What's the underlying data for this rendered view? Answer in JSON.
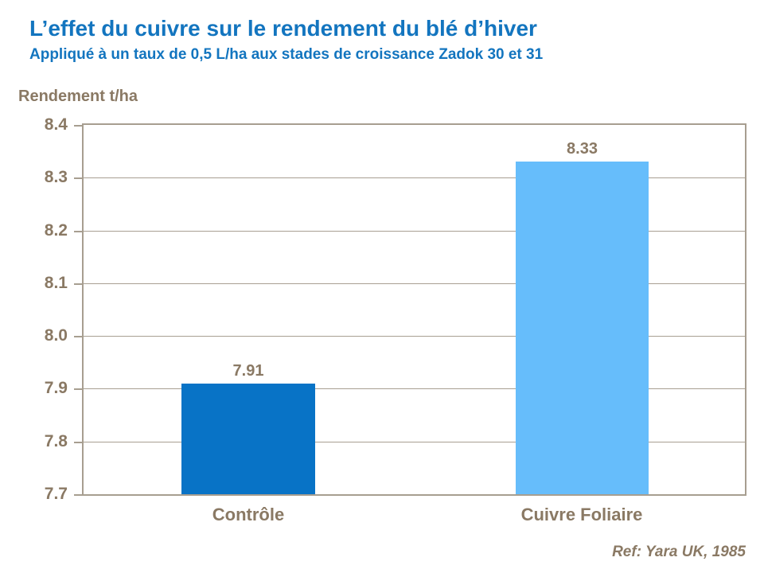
{
  "header": {
    "title": "L’effet du cuivre sur le rendement du blé d’hiver",
    "subtitle": "Appliqué à un taux de 0,5 L/ha aux stades de croissance Zadok 30 et 31",
    "title_color": "#1375BF"
  },
  "footer": {
    "ref": "Ref: Yara UK, 1985"
  },
  "chart_data": {
    "type": "bar",
    "title": "L’effet du cuivre sur le rendement du blé d’hiver",
    "subtitle": "Appliqué à un taux de 0,5 L/ha aux stades de croissance Zadok 30 et 31",
    "ylabel": "Rendement t/ha",
    "xlabel": "",
    "categories": [
      "Contrôle",
      "Cuivre Foliaire"
    ],
    "values": [
      7.91,
      8.33
    ],
    "value_labels": [
      "7.91",
      "8.33"
    ],
    "bar_colors": [
      "#0873C6",
      "#66BDFB"
    ],
    "ylim": [
      7.7,
      8.4
    ],
    "ytick_step": 0.1,
    "yticks": [
      "8.4",
      "8.3",
      "8.2",
      "8.1",
      "8.0",
      "7.9",
      "7.8",
      "7.7"
    ],
    "grid": true,
    "legend": "none",
    "annotation": "Ref: Yara UK, 1985",
    "text_color": "#8A7964",
    "axis_color": "#A79E90"
  }
}
